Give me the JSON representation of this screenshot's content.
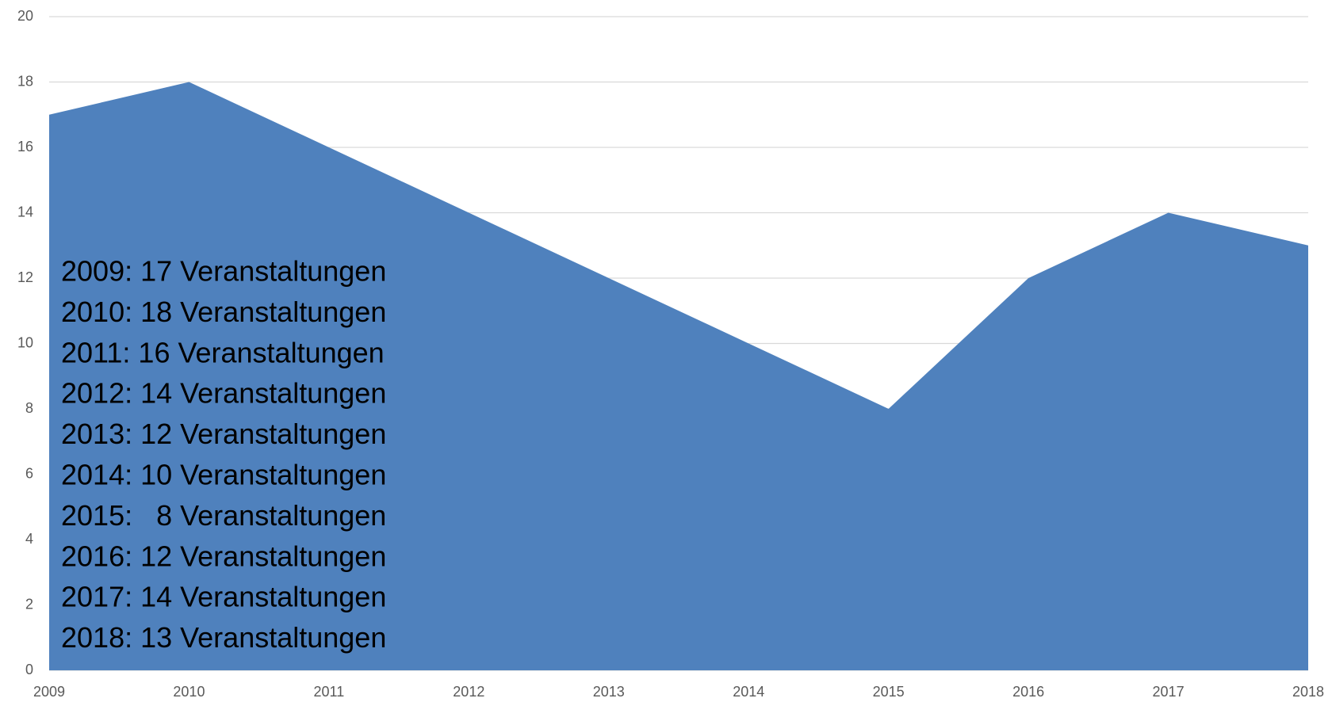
{
  "chart_data": {
    "type": "area",
    "x": [
      2009,
      2010,
      2011,
      2012,
      2013,
      2014,
      2015,
      2016,
      2017,
      2018
    ],
    "values": [
      17,
      18,
      16,
      14,
      12,
      10,
      8,
      12,
      14,
      13
    ],
    "color": "#4f81bd",
    "xlim": [
      2009,
      2018
    ],
    "ylim": [
      0,
      20
    ],
    "yticks": [
      0,
      2,
      4,
      6,
      8,
      10,
      12,
      14,
      16,
      18,
      20
    ],
    "grid": true,
    "annotations": [
      "2009: 17 Veranstaltungen",
      "2010: 18 Veranstaltungen",
      "2011: 16 Veranstaltungen",
      "2012: 14 Veranstaltungen",
      "2013: 12 Veranstaltungen",
      "2014: 10 Veranstaltungen",
      "2015:   8 Veranstaltungen",
      "2016: 12 Veranstaltungen",
      "2017: 14 Veranstaltungen",
      "2018: 13 Veranstaltungen"
    ]
  }
}
